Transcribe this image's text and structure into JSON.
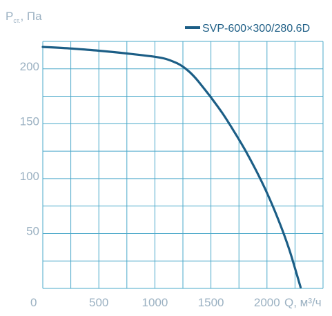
{
  "chart_data": {
    "type": "line",
    "ylabel_main": "P",
    "ylabel_sub": "ст.",
    "ylabel_unit": ", Па",
    "xlabel": "Q, м³/ч",
    "xlim": [
      0,
      2500
    ],
    "ylim": [
      0,
      225
    ],
    "x_ticks": [
      0,
      500,
      1000,
      1500,
      2000
    ],
    "y_ticks": [
      50,
      100,
      150,
      200
    ],
    "x_grid_step": 250,
    "y_grid_step": 25,
    "grid": true,
    "legend_position": "top-right",
    "colors": {
      "series": "#1c5e86",
      "grid": "#4aa8c9",
      "text": "#9bb1c2"
    },
    "series": [
      {
        "name": "SVP-600×300/280.6D",
        "x": [
          0,
          250,
          500,
          750,
          1000,
          1100,
          1200,
          1250,
          1300,
          1350,
          1400,
          1500,
          1600,
          1700,
          1800,
          1900,
          2000,
          2100,
          2200,
          2300
        ],
        "y": [
          220,
          218.5,
          216.5,
          214,
          211,
          209,
          205,
          202,
          198,
          193,
          187,
          174,
          160,
          144,
          127,
          108,
          87,
          63,
          35,
          1
        ]
      }
    ]
  }
}
